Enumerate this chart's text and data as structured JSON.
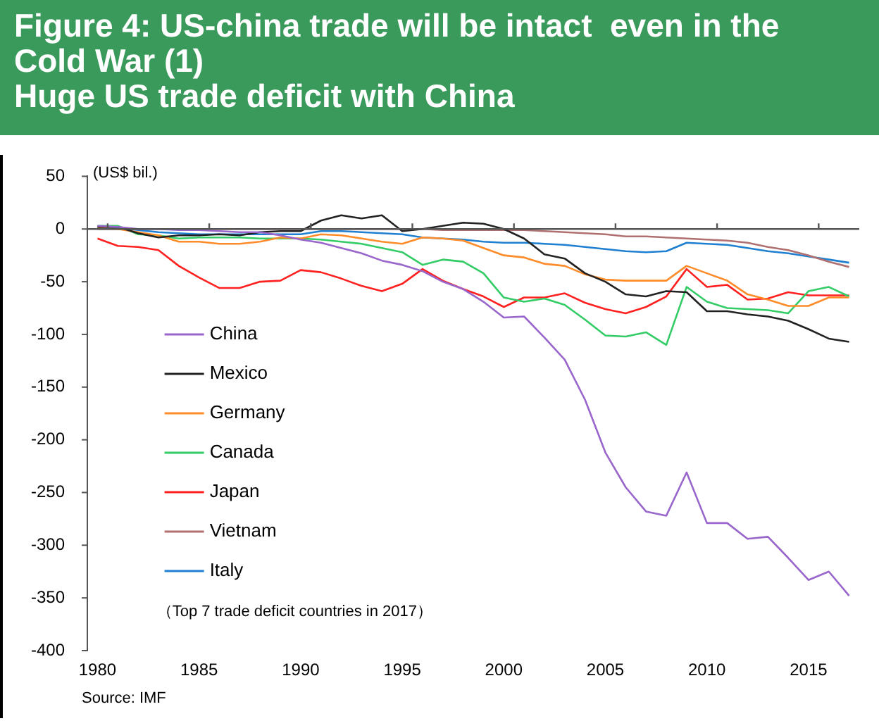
{
  "chart_data": {
    "type": "line",
    "title": "Figure 4: US-china trade will be intact  even in the Cold War (1)",
    "subtitle": "Huge US trade deficit with China",
    "ylabel": "(US$ bil.)",
    "x": [
      1980,
      1981,
      1982,
      1983,
      1984,
      1985,
      1986,
      1987,
      1988,
      1989,
      1990,
      1991,
      1992,
      1993,
      1994,
      1995,
      1996,
      1997,
      1998,
      1999,
      2000,
      2001,
      2002,
      2003,
      2004,
      2005,
      2006,
      2007,
      2008,
      2009,
      2010,
      2011,
      2012,
      2013,
      2014,
      2015,
      2016,
      2017
    ],
    "series": [
      {
        "name": "China",
        "color": "#9966cc",
        "values": [
          3,
          2,
          0,
          0,
          -1,
          -1,
          -2,
          -3,
          -3,
          -6,
          -10,
          -13,
          -18,
          -23,
          -30,
          -34,
          -40,
          -50,
          -57,
          -69,
          -84,
          -83,
          -103,
          -124,
          -162,
          -212,
          -245,
          -268,
          -272,
          -231,
          -279,
          -279,
          -294,
          -292,
          -312,
          -333,
          -325,
          -348
        ]
      },
      {
        "name": "Mexico",
        "color": "#222222",
        "values": [
          2,
          2,
          -4,
          -8,
          -6,
          -6,
          -5,
          -6,
          -3,
          -2,
          -2,
          8,
          13,
          10,
          13,
          -2,
          0,
          3,
          6,
          5,
          0,
          -9,
          -24,
          -28,
          -42,
          -50,
          -62,
          -64,
          -59,
          -60,
          -78,
          -78,
          -81,
          -83,
          -87,
          -95,
          -104,
          -107
        ]
      },
      {
        "name": "Germany",
        "color": "#ff8c2a",
        "values": [
          1,
          0,
          -3,
          -6,
          -12,
          -12,
          -14,
          -14,
          -12,
          -8,
          -9,
          -5,
          -6,
          -9,
          -12,
          -14,
          -8,
          -9,
          -11,
          -18,
          -25,
          -27,
          -33,
          -35,
          -43,
          -48,
          -49,
          -49,
          -49,
          -35,
          -42,
          -49,
          -62,
          -67,
          -73,
          -73,
          -65,
          -65
        ]
      },
      {
        "name": "Canada",
        "color": "#33cc66",
        "values": [
          3,
          3,
          -5,
          -6,
          -9,
          -8,
          -8,
          -8,
          -9,
          -9,
          -9,
          -10,
          -12,
          -14,
          -18,
          -22,
          -34,
          -29,
          -31,
          -42,
          -65,
          -69,
          -66,
          -72,
          -86,
          -101,
          -102,
          -98,
          -110,
          -55,
          -69,
          -75,
          -76,
          -77,
          -80,
          -59,
          -55,
          -64
        ]
      },
      {
        "name": "Japan",
        "color": "#ff2020",
        "values": [
          -9,
          -16,
          -17,
          -20,
          -35,
          -46,
          -56,
          -56,
          -50,
          -49,
          -39,
          -41,
          -47,
          -54,
          -59,
          -52,
          -38,
          -49,
          -57,
          -64,
          -74,
          -65,
          -65,
          -61,
          -70,
          -76,
          -80,
          -74,
          -64,
          -38,
          -55,
          -53,
          -67,
          -66,
          -60,
          -63,
          -63,
          -63
        ]
      },
      {
        "name": "Vietnam",
        "color": "#b07070",
        "values": [
          0,
          0,
          0,
          0,
          0,
          0,
          0,
          0,
          0,
          0,
          0,
          0,
          0,
          0,
          0,
          0,
          0,
          -1,
          -1,
          -1,
          -1,
          -1,
          -2,
          -3,
          -4,
          -5,
          -7,
          -7,
          -8,
          -9,
          -10,
          -11,
          -13,
          -17,
          -20,
          -25,
          -31,
          -36
        ]
      },
      {
        "name": "Italy",
        "color": "#1f7fd0",
        "values": [
          2,
          1,
          -1,
          -3,
          -4,
          -5,
          -5,
          -5,
          -5,
          -5,
          -5,
          -2,
          -2,
          -3,
          -4,
          -5,
          -8,
          -9,
          -10,
          -12,
          -13,
          -13,
          -14,
          -15,
          -17,
          -19,
          -21,
          -22,
          -21,
          -13,
          -14,
          -15,
          -18,
          -21,
          -23,
          -26,
          -29,
          -32
        ]
      }
    ],
    "xlim": [
      1979.5,
      2017.5
    ],
    "xticks": [
      1980,
      1985,
      1990,
      1995,
      2000,
      2005,
      2010,
      2015
    ],
    "ylim": [
      -400,
      50
    ],
    "yticks": [
      -400,
      -350,
      -300,
      -250,
      -200,
      -150,
      -100,
      -50,
      0,
      50
    ],
    "grid": false,
    "ref_lines": [
      {
        "axis": "y",
        "value": 0,
        "color": "#555555"
      }
    ],
    "legend": "left",
    "marker": "none",
    "line_style": "solid",
    "annotations": [
      "（Top 7 trade deficit countries in 2017）",
      "Source: IMF"
    ]
  }
}
